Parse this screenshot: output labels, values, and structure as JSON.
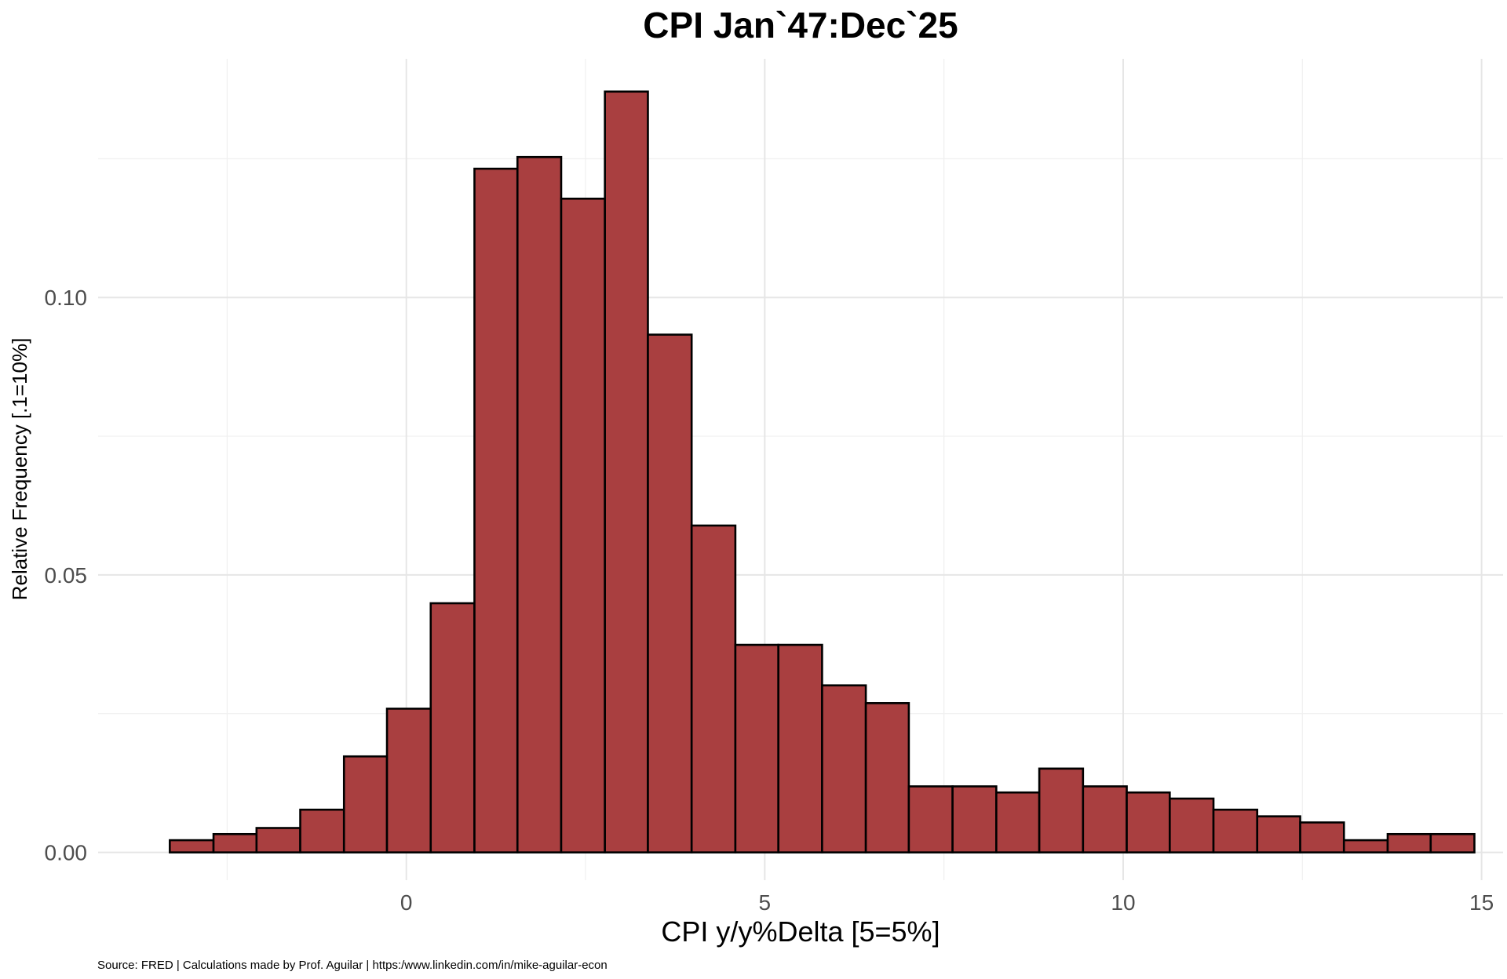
{
  "chart_data": {
    "type": "bar",
    "subtype": "histogram",
    "title": "CPI Jan`47:Dec`25",
    "xlabel": "CPI y/y%Delta [5=5%]",
    "ylabel": "Relative Frequency [.1=10%]",
    "caption": "Source: FRED | Calculations made by Prof. Aguilar | https:/www.linkedin.com/in/mike-aguilar-econ",
    "xlim": [
      -4.3,
      15.3
    ],
    "ylim": [
      -0.005,
      0.143
    ],
    "x_ticks": [
      0,
      5,
      10,
      15
    ],
    "x_tick_labels": [
      "0",
      "5",
      "10",
      "15"
    ],
    "y_ticks": [
      0.0,
      0.05,
      0.1
    ],
    "y_tick_labels": [
      "0.00",
      "0.05",
      "0.10"
    ],
    "x_minor_ticks": [
      -2.5,
      2.5,
      7.5,
      12.5
    ],
    "y_minor_ticks": [
      0.025,
      0.075,
      0.125
    ],
    "grid": true,
    "legend": "none",
    "bar_color": "#a93f40",
    "bar_edge_color": "#000000",
    "bin_width": 0.6066,
    "bins": [
      {
        "start": -3.3,
        "end": -2.69,
        "value": 0.0022
      },
      {
        "start": -2.69,
        "end": -2.09,
        "value": 0.0033
      },
      {
        "start": -2.09,
        "end": -1.48,
        "value": 0.0044
      },
      {
        "start": -1.48,
        "end": -0.87,
        "value": 0.0077
      },
      {
        "start": -0.87,
        "end": -0.27,
        "value": 0.0173
      },
      {
        "start": -0.27,
        "end": 0.34,
        "value": 0.0259
      },
      {
        "start": 0.34,
        "end": 0.95,
        "value": 0.0449
      },
      {
        "start": 0.95,
        "end": 1.55,
        "value": 0.1232
      },
      {
        "start": 1.55,
        "end": 2.16,
        "value": 0.1253
      },
      {
        "start": 2.16,
        "end": 2.77,
        "value": 0.1178
      },
      {
        "start": 2.77,
        "end": 3.37,
        "value": 0.1371
      },
      {
        "start": 3.37,
        "end": 3.98,
        "value": 0.0933
      },
      {
        "start": 3.98,
        "end": 4.59,
        "value": 0.0589
      },
      {
        "start": 4.59,
        "end": 5.19,
        "value": 0.0374
      },
      {
        "start": 5.19,
        "end": 5.8,
        "value": 0.0374
      },
      {
        "start": 5.8,
        "end": 6.41,
        "value": 0.0301
      },
      {
        "start": 6.41,
        "end": 7.01,
        "value": 0.0269
      },
      {
        "start": 7.01,
        "end": 7.62,
        "value": 0.0119
      },
      {
        "start": 7.62,
        "end": 8.23,
        "value": 0.0119
      },
      {
        "start": 8.23,
        "end": 8.83,
        "value": 0.0108
      },
      {
        "start": 8.83,
        "end": 9.44,
        "value": 0.0151
      },
      {
        "start": 9.44,
        "end": 10.05,
        "value": 0.0119
      },
      {
        "start": 10.05,
        "end": 10.65,
        "value": 0.0108
      },
      {
        "start": 10.65,
        "end": 11.26,
        "value": 0.0097
      },
      {
        "start": 11.26,
        "end": 11.87,
        "value": 0.0077
      },
      {
        "start": 11.87,
        "end": 12.47,
        "value": 0.0065
      },
      {
        "start": 12.47,
        "end": 13.08,
        "value": 0.0054
      },
      {
        "start": 13.08,
        "end": 13.69,
        "value": 0.0022
      },
      {
        "start": 13.69,
        "end": 14.29,
        "value": 0.0033
      },
      {
        "start": 14.29,
        "end": 14.9,
        "value": 0.0033
      }
    ]
  }
}
